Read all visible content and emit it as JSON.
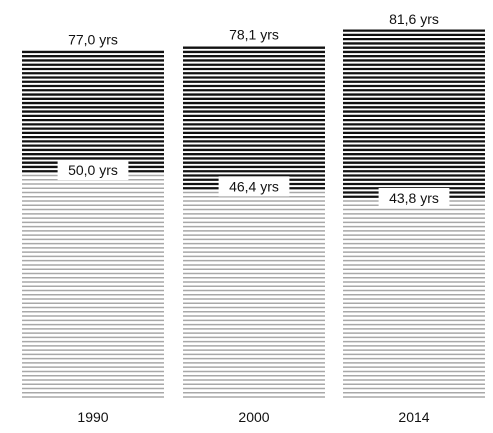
{
  "chart_data": {
    "type": "bar",
    "categories": [
      "1990",
      "2000",
      "2014"
    ],
    "series": [
      {
        "values": [
          77.0,
          78.1,
          81.6
        ]
      },
      {
        "values": [
          50.0,
          46.4,
          43.8
        ]
      }
    ],
    "top_labels": [
      "77,0 yrs",
      "78,1 yrs",
      "81,6 yrs"
    ],
    "inner_labels": [
      "50,0 yrs",
      "46,4 yrs",
      "43,8 yrs"
    ],
    "ylim": [
      0,
      81.6
    ],
    "colors": {
      "dark_stripe": "#111111",
      "light_stripe": "#a8a8a8",
      "background": "#ffffff"
    }
  }
}
